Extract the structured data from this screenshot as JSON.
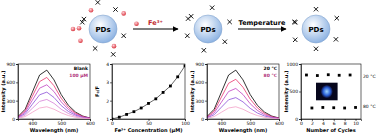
{
  "diagram": {
    "particles": [
      "PDs",
      "PDs",
      "PDs"
    ],
    "arrows": [
      "Fe³⁺",
      "Temperature"
    ]
  },
  "chart_data": [
    {
      "type": "line",
      "x_label": "Wavelength (nm)",
      "y_label": "Intensity (a.u.)",
      "x": [
        350,
        375,
        400,
        425,
        450,
        475,
        500,
        525,
        550,
        575,
        600
      ],
      "series": [
        {
          "name": "Blank",
          "color": "#000000",
          "values": [
            40,
            160,
            440,
            720,
            800,
            640,
            400,
            224,
            112,
            48,
            16
          ]
        },
        {
          "color": "#e8336b",
          "values": [
            34,
            136,
            374,
            612,
            680,
            544,
            340,
            190,
            95,
            41,
            14
          ]
        },
        {
          "color": "#c040c0",
          "values": [
            28,
            112,
            308,
            504,
            560,
            448,
            280,
            157,
            78,
            34,
            11
          ]
        },
        {
          "color": "#8a4fd8",
          "values": [
            22,
            88,
            242,
            396,
            440,
            352,
            220,
            123,
            62,
            26,
            9
          ]
        },
        {
          "color": "#d67fd6",
          "values": [
            16,
            64,
            176,
            288,
            320,
            256,
            160,
            90,
            45,
            19,
            6
          ]
        },
        {
          "name": "100 μM",
          "color": "#f2a0c8",
          "values": [
            10,
            40,
            110,
            180,
            200,
            160,
            100,
            56,
            28,
            12,
            4
          ]
        }
      ],
      "xlim": [
        350,
        600
      ],
      "xticks": [
        400,
        500,
        600
      ],
      "ylim": [
        0,
        900
      ],
      "yticks": [
        0,
        300,
        600,
        900
      ]
    },
    {
      "type": "scatter",
      "x_label": "Fe³⁺ Concentration (μM)",
      "y_label": "F₀/F",
      "x": [
        0,
        10,
        20,
        30,
        40,
        50,
        60,
        70,
        80,
        90,
        100
      ],
      "series": [
        {
          "color": "#000000",
          "marker": "square",
          "line_style": "solid",
          "values": [
            1,
            1.1,
            1.25,
            1.4,
            1.6,
            1.85,
            2.1,
            2.45,
            2.8,
            3.3,
            3.9
          ]
        }
      ],
      "xlim": [
        0,
        100
      ],
      "xticks": [
        0,
        50,
        100
      ],
      "ylim": [
        1,
        4
      ],
      "yticks": [
        1,
        2,
        3,
        4
      ]
    },
    {
      "type": "line",
      "x_label": "Wavelength (nm)",
      "y_label": "Intensity (a.u.)",
      "x": [
        350,
        375,
        400,
        425,
        450,
        475,
        500,
        525,
        550,
        575,
        600
      ],
      "series": [
        {
          "name": "20 °C",
          "color": "#000000",
          "values": [
            40,
            160,
            440,
            720,
            800,
            640,
            400,
            224,
            112,
            48,
            16
          ]
        },
        {
          "color": "#e8336b",
          "values": [
            33,
            130,
            358,
            585,
            650,
            520,
            325,
            182,
            91,
            39,
            13
          ]
        },
        {
          "color": "#c040c0",
          "values": [
            25,
            100,
            275,
            450,
            500,
            400,
            250,
            140,
            70,
            30,
            10
          ]
        },
        {
          "color": "#8a4fd8",
          "values": [
            18,
            70,
            193,
            315,
            350,
            280,
            175,
            98,
            49,
            21,
            7
          ]
        },
        {
          "name": "80 °C",
          "color": "#f2a0c8",
          "values": [
            10,
            40,
            110,
            180,
            200,
            160,
            100,
            56,
            28,
            12,
            4
          ]
        }
      ],
      "xlim": [
        350,
        600
      ],
      "xticks": [
        400,
        500,
        600
      ],
      "ylim": [
        0,
        900
      ],
      "yticks": [
        0,
        300,
        600,
        900
      ]
    },
    {
      "type": "scatter",
      "x_label": "Number of Cycles",
      "y_label": "Intensity (a.u.)",
      "x": [
        1,
        2,
        3,
        4,
        5,
        6,
        7,
        8,
        9,
        10
      ],
      "series": [
        {
          "color": "#000000",
          "marker": "square",
          "line_style": "none",
          "values": [
            800,
            200,
            790,
            210,
            805,
            205,
            795,
            200,
            800,
            210
          ]
        }
      ],
      "annotations": [
        "20 °C",
        "80 °C"
      ],
      "xlim": [
        0,
        11
      ],
      "xticks": [
        0,
        2,
        4,
        6,
        8,
        10
      ],
      "ylim": [
        0,
        1000
      ],
      "yticks": [
        0,
        500,
        1000
      ]
    }
  ]
}
